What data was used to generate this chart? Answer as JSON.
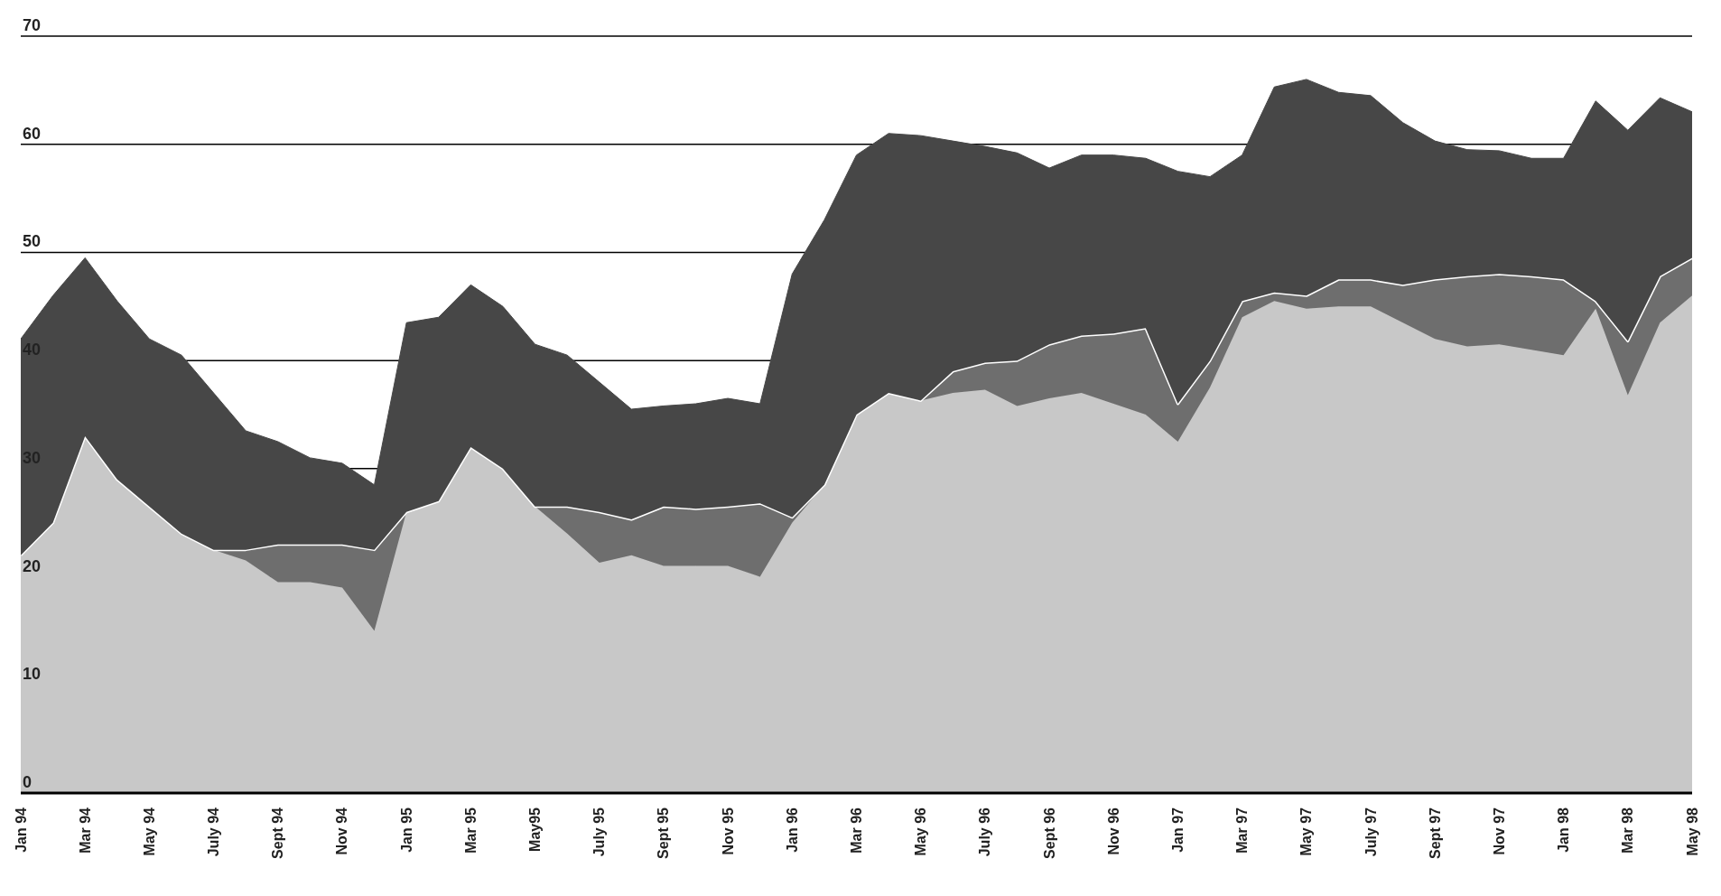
{
  "chart_data": {
    "type": "area",
    "stacked": true,
    "grid": "y",
    "legend": false,
    "categories": [
      "Jan 94",
      null,
      "Mar 94",
      null,
      "May 94",
      null,
      "July 94",
      null,
      "Sept 94",
      null,
      "Nov 94",
      null,
      "Jan 95",
      null,
      "Mar 95",
      null,
      "May95",
      null,
      "July 95",
      null,
      "Sept 95",
      null,
      "Nov 95",
      null,
      "Jan 96",
      null,
      "Mar 96",
      null,
      "May 96",
      null,
      "July 96",
      null,
      "Sept 96",
      null,
      "Nov 96",
      null,
      "Jan 97",
      null,
      "Mar 97",
      null,
      "May 97",
      null,
      "July 97",
      null,
      "Sept 97",
      null,
      "Nov 97",
      null,
      "Jan 98",
      null,
      "Mar 98",
      null,
      "May 98"
    ],
    "ylim": [
      0,
      70
    ],
    "yticks": [
      0,
      10,
      20,
      30,
      40,
      50,
      60,
      70
    ],
    "series": [
      {
        "color": "#c8c8c8",
        "values": [
          22,
          25,
          33,
          29,
          26.5,
          24,
          22.5,
          21.5,
          19.5,
          19.5,
          19,
          15,
          26,
          27,
          32,
          30,
          26.5,
          24,
          21.3,
          22,
          21,
          21,
          21,
          20,
          25,
          28.5,
          35,
          37,
          36.3,
          37,
          37.3,
          35.8,
          36.5,
          37,
          36,
          35,
          32.5,
          37.5,
          44,
          45.5,
          44.8,
          45,
          45,
          43.5,
          42,
          41.3,
          41.5,
          41,
          40.5,
          44.8,
          36.8,
          43.5,
          46
        ]
      },
      {
        "color": "#6e6e6e",
        "values": [
          0,
          0,
          0,
          0,
          0,
          0,
          0,
          1,
          3.5,
          3.5,
          4,
          7.5,
          0,
          0,
          0,
          0,
          0,
          2.5,
          4.7,
          3.3,
          5.5,
          5.3,
          5.5,
          6.8,
          0.5,
          0,
          0,
          0,
          0,
          2,
          2.5,
          4.2,
          5,
          5.3,
          6.5,
          8,
          3.5,
          2.5,
          1.5,
          0.8,
          1.2,
          2.5,
          2.5,
          3.5,
          5.5,
          6.5,
          6.5,
          6.8,
          7,
          0.7,
          5,
          4.3,
          3.5
        ]
      },
      {
        "color": "#474747",
        "values": [
          20,
          21,
          16.5,
          16.5,
          15.5,
          16.5,
          14.5,
          11,
          9.5,
          8,
          7.5,
          6,
          17.5,
          17,
          15,
          15,
          15,
          14,
          12,
          10.2,
          9.3,
          9.7,
          10,
          9.2,
          22.5,
          24.5,
          24,
          24,
          24.5,
          21.3,
          20,
          19.2,
          16.3,
          16.7,
          16.5,
          15.7,
          21.5,
          17,
          13.5,
          19,
          20,
          17.3,
          17,
          15,
          12.8,
          11.7,
          11.4,
          10.9,
          11.2,
          18.5,
          19.5,
          16.5,
          13.5
        ]
      }
    ]
  }
}
